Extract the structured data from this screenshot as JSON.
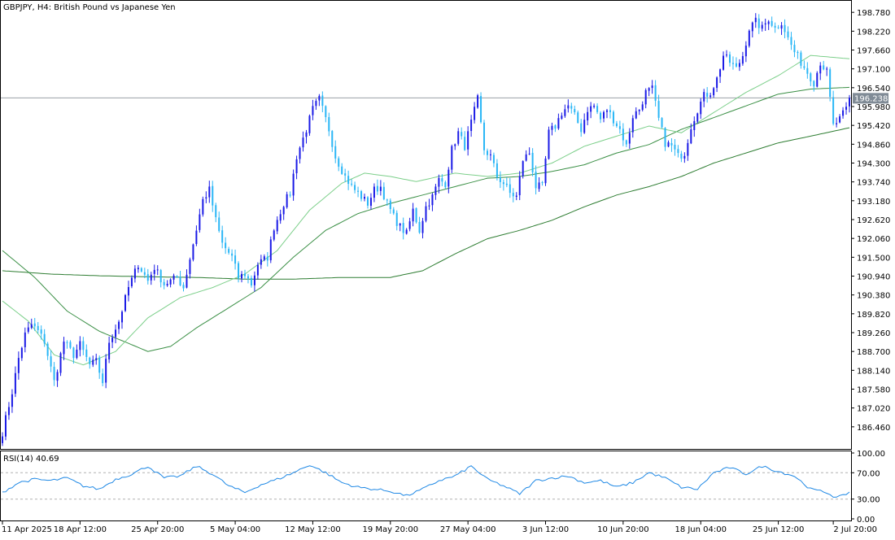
{
  "chart_data": [
    {
      "type": "candlestick",
      "title": "GBPJPY, H4:  British Pound vs Japanese Yen",
      "symbol": "GBPJPY",
      "timeframe": "H4",
      "description": "British Pound vs Japanese Yen",
      "current_price": "196.238",
      "ylim": [
        185.9,
        199.05
      ],
      "y_ticks": [
        "198.780",
        "198.220",
        "197.660",
        "197.100",
        "196.540",
        "195.980",
        "195.420",
        "194.860",
        "194.300",
        "193.740",
        "193.180",
        "192.620",
        "192.060",
        "191.500",
        "190.940",
        "190.380",
        "189.820",
        "189.260",
        "188.700",
        "188.140",
        "187.580",
        "187.020",
        "186.460"
      ],
      "x_ticks": [
        "11 Apr 2025",
        "18 Apr 12:00",
        "25 Apr 20:00",
        "5 May 04:00",
        "12 May 12:00",
        "19 May 20:00",
        "27 May 04:00",
        "3 Jun 12:00",
        "10 Jun 20:00",
        "18 Jun 04:00",
        "25 Jun 12:00",
        "2 Jul 20:00"
      ],
      "anchors": [
        [
          0,
          186.3
        ],
        [
          3,
          187.5
        ],
        [
          5,
          188.5
        ],
        [
          7,
          189.2
        ],
        [
          9,
          189.5
        ],
        [
          11,
          189.3
        ],
        [
          13,
          189.0
        ],
        [
          16,
          187.8
        ],
        [
          19,
          189.0
        ],
        [
          22,
          188.6
        ],
        [
          24,
          188.9
        ],
        [
          27,
          188.3
        ],
        [
          29,
          188.4
        ],
        [
          31,
          187.8
        ],
        [
          33,
          189.0
        ],
        [
          36,
          189.6
        ],
        [
          39,
          190.6
        ],
        [
          42,
          191.3
        ],
        [
          45,
          190.8
        ],
        [
          47,
          191.2
        ],
        [
          50,
          190.7
        ],
        [
          54,
          190.9
        ],
        [
          56,
          190.6
        ],
        [
          59,
          191.9
        ],
        [
          62,
          193.2
        ],
        [
          64,
          193.5
        ],
        [
          66,
          192.6
        ],
        [
          68,
          191.9
        ],
        [
          71,
          191.5
        ],
        [
          73,
          190.9
        ],
        [
          75,
          191.0
        ],
        [
          77,
          190.7
        ],
        [
          79,
          191.3
        ],
        [
          82,
          191.5
        ],
        [
          84,
          192.4
        ],
        [
          87,
          193.1
        ],
        [
          89,
          193.4
        ],
        [
          91,
          194.5
        ],
        [
          94,
          195.3
        ],
        [
          96,
          195.9
        ],
        [
          98,
          196.2
        ],
        [
          101,
          195.3
        ],
        [
          103,
          194.5
        ],
        [
          106,
          193.9
        ],
        [
          108,
          193.6
        ],
        [
          111,
          193.3
        ],
        [
          113,
          193.1
        ],
        [
          115,
          193.5
        ],
        [
          117,
          193.6
        ],
        [
          119,
          193.1
        ],
        [
          121,
          192.7
        ],
        [
          123,
          192.4
        ],
        [
          125,
          192.2
        ],
        [
          127,
          192.9
        ],
        [
          129,
          192.3
        ],
        [
          131,
          193.0
        ],
        [
          133,
          193.3
        ],
        [
          135,
          193.8
        ],
        [
          137,
          193.7
        ],
        [
          139,
          194.7
        ],
        [
          141,
          195.2
        ],
        [
          143,
          194.8
        ],
        [
          145,
          195.5
        ],
        [
          147,
          196.2
        ],
        [
          149,
          194.7
        ],
        [
          151,
          194.5
        ],
        [
          153,
          193.9
        ],
        [
          155,
          193.7
        ],
        [
          157,
          193.4
        ],
        [
          159,
          193.3
        ],
        [
          161,
          194.4
        ],
        [
          163,
          194.6
        ],
        [
          165,
          193.6
        ],
        [
          167,
          193.6
        ],
        [
          169,
          195.2
        ],
        [
          171,
          195.4
        ],
        [
          173,
          195.8
        ],
        [
          175,
          196.0
        ],
        [
          177,
          195.7
        ],
        [
          179,
          195.3
        ],
        [
          181,
          195.9
        ],
        [
          183,
          196.0
        ],
        [
          185,
          195.6
        ],
        [
          187,
          195.9
        ],
        [
          189,
          195.6
        ],
        [
          191,
          195.3
        ],
        [
          193,
          194.8
        ],
        [
          195,
          195.7
        ],
        [
          197,
          195.9
        ],
        [
          199,
          196.4
        ],
        [
          201,
          196.5
        ],
        [
          203,
          195.6
        ],
        [
          205,
          194.9
        ],
        [
          207,
          194.8
        ],
        [
          209,
          194.5
        ],
        [
          211,
          194.6
        ],
        [
          213,
          195.4
        ],
        [
          215,
          195.9
        ],
        [
          217,
          196.3
        ],
        [
          219,
          196.4
        ],
        [
          221,
          196.8
        ],
        [
          223,
          197.5
        ],
        [
          225,
          197.3
        ],
        [
          227,
          197.1
        ],
        [
          229,
          197.5
        ],
        [
          231,
          198.3
        ],
        [
          233,
          198.5
        ],
        [
          235,
          198.3
        ],
        [
          237,
          198.6
        ],
        [
          239,
          198.3
        ],
        [
          241,
          198.5
        ],
        [
          243,
          198.0
        ],
        [
          245,
          197.6
        ],
        [
          247,
          197.3
        ],
        [
          249,
          197.0
        ],
        [
          251,
          196.7
        ],
        [
          253,
          197.3
        ],
        [
          255,
          197.0
        ],
        [
          257,
          195.4
        ],
        [
          259,
          195.6
        ],
        [
          261,
          195.9
        ],
        [
          262,
          196.2
        ]
      ],
      "series": [
        {
          "name": "",
          "type": "ma",
          "color": "#2e7d32",
          "anchors": [
            [
              0,
              191.1
            ],
            [
              15,
              191.0
            ],
            [
              30,
              190.95
            ],
            [
              45,
              190.92
            ],
            [
              60,
              190.9
            ],
            [
              75,
              190.85
            ],
            [
              90,
              190.85
            ],
            [
              105,
              190.9
            ],
            [
              120,
              190.9
            ],
            [
              130,
              191.1
            ],
            [
              140,
              191.6
            ],
            [
              150,
              192.05
            ],
            [
              160,
              192.3
            ],
            [
              170,
              192.6
            ],
            [
              180,
              193.0
            ],
            [
              190,
              193.35
            ],
            [
              200,
              193.6
            ],
            [
              210,
              193.9
            ],
            [
              220,
              194.3
            ],
            [
              230,
              194.6
            ],
            [
              240,
              194.9
            ],
            [
              250,
              195.1
            ],
            [
              262,
              195.35
            ]
          ]
        },
        {
          "name": "",
          "type": "ma",
          "color": "#3a8f45",
          "anchors": [
            [
              0,
              191.7
            ],
            [
              10,
              190.9
            ],
            [
              20,
              189.9
            ],
            [
              30,
              189.3
            ],
            [
              40,
              188.9
            ],
            [
              45,
              188.7
            ],
            [
              52,
              188.85
            ],
            [
              60,
              189.4
            ],
            [
              70,
              190.0
            ],
            [
              80,
              190.6
            ],
            [
              90,
              191.5
            ],
            [
              100,
              192.3
            ],
            [
              110,
              192.8
            ],
            [
              120,
              193.1
            ],
            [
              130,
              193.35
            ],
            [
              140,
              193.6
            ],
            [
              150,
              193.85
            ],
            [
              160,
              193.9
            ],
            [
              170,
              194.05
            ],
            [
              180,
              194.25
            ],
            [
              190,
              194.6
            ],
            [
              200,
              194.85
            ],
            [
              210,
              195.3
            ],
            [
              220,
              195.65
            ],
            [
              230,
              196.0
            ],
            [
              240,
              196.35
            ],
            [
              250,
              196.5
            ],
            [
              262,
              196.55
            ]
          ]
        },
        {
          "name": "",
          "type": "ma",
          "color": "#7ccf8a",
          "anchors": [
            [
              0,
              190.2
            ],
            [
              8,
              189.6
            ],
            [
              16,
              188.6
            ],
            [
              25,
              188.3
            ],
            [
              35,
              188.7
            ],
            [
              45,
              189.7
            ],
            [
              55,
              190.3
            ],
            [
              65,
              190.6
            ],
            [
              75,
              191.0
            ],
            [
              85,
              191.7
            ],
            [
              95,
              192.9
            ],
            [
              105,
              193.7
            ],
            [
              112,
              194.0
            ],
            [
              120,
              193.9
            ],
            [
              128,
              193.75
            ],
            [
              135,
              193.9
            ],
            [
              140,
              194.0
            ],
            [
              150,
              193.9
            ],
            [
              160,
              194.0
            ],
            [
              170,
              194.3
            ],
            [
              180,
              194.8
            ],
            [
              190,
              195.1
            ],
            [
              200,
              195.4
            ],
            [
              210,
              195.2
            ],
            [
              220,
              195.8
            ],
            [
              230,
              196.4
            ],
            [
              240,
              196.9
            ],
            [
              250,
              197.5
            ],
            [
              262,
              197.4
            ]
          ]
        }
      ],
      "colors": {
        "bull": "#1a1ae6",
        "bear": "#29b6f6",
        "ma_slow": "#2e7d32",
        "ma_mid": "#3a8f45",
        "ma_fast": "#7ccf8a",
        "price_line": "#9aa0a6",
        "tag": "#808b96"
      }
    },
    {
      "type": "line",
      "title": "RSI(14) 40.69",
      "ylim": [
        0,
        100
      ],
      "y_ticks": [
        "100.00",
        "70.00",
        "30.00",
        "0.00"
      ],
      "levels": [
        70,
        30
      ],
      "line_color": "#1e88e5",
      "anchors": [
        [
          0,
          40
        ],
        [
          5,
          55
        ],
        [
          10,
          60
        ],
        [
          15,
          58
        ],
        [
          20,
          62
        ],
        [
          25,
          50
        ],
        [
          30,
          45
        ],
        [
          35,
          60
        ],
        [
          40,
          68
        ],
        [
          45,
          80
        ],
        [
          50,
          62
        ],
        [
          55,
          65
        ],
        [
          60,
          80
        ],
        [
          65,
          68
        ],
        [
          70,
          50
        ],
        [
          75,
          40
        ],
        [
          80,
          52
        ],
        [
          85,
          60
        ],
        [
          90,
          70
        ],
        [
          95,
          82
        ],
        [
          100,
          70
        ],
        [
          105,
          55
        ],
        [
          110,
          48
        ],
        [
          115,
          45
        ],
        [
          120,
          42
        ],
        [
          125,
          35
        ],
        [
          130,
          45
        ],
        [
          135,
          58
        ],
        [
          140,
          65
        ],
        [
          145,
          80
        ],
        [
          150,
          60
        ],
        [
          155,
          50
        ],
        [
          160,
          38
        ],
        [
          165,
          58
        ],
        [
          170,
          62
        ],
        [
          175,
          65
        ],
        [
          180,
          55
        ],
        [
          185,
          58
        ],
        [
          190,
          48
        ],
        [
          195,
          55
        ],
        [
          200,
          70
        ],
        [
          205,
          62
        ],
        [
          210,
          48
        ],
        [
          215,
          45
        ],
        [
          220,
          70
        ],
        [
          225,
          78
        ],
        [
          230,
          68
        ],
        [
          235,
          80
        ],
        [
          240,
          72
        ],
        [
          245,
          65
        ],
        [
          250,
          45
        ],
        [
          255,
          40
        ],
        [
          258,
          32
        ],
        [
          260,
          35
        ],
        [
          262,
          41
        ]
      ]
    }
  ]
}
